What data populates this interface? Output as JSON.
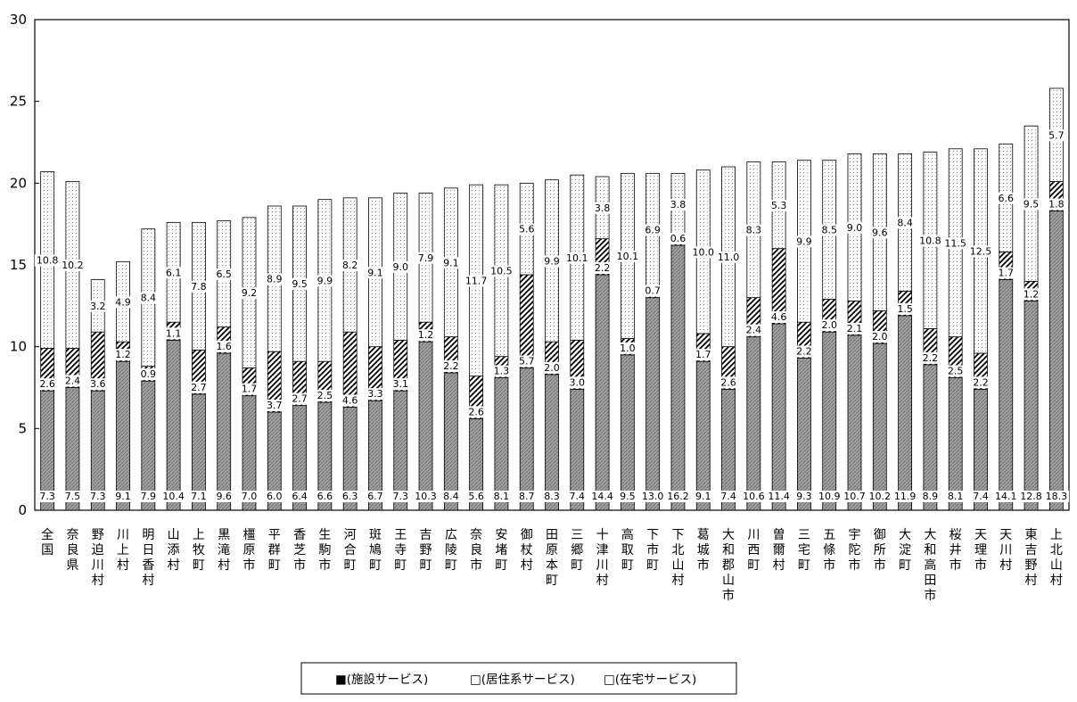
{
  "chart_data": {
    "type": "bar",
    "stacked": true,
    "ylim": [
      0,
      30
    ],
    "yticks": [
      0,
      5,
      10,
      15,
      20,
      25,
      30
    ],
    "grid": false,
    "legend_position": "bottom",
    "categories": [
      "全国",
      "奈良県",
      "野迫川村",
      "川上村",
      "明日香村",
      "山添村",
      "上牧町",
      "黒滝村",
      "橿原市",
      "平群町",
      "香芝市",
      "生駒市",
      "河合町",
      "斑鳩町",
      "王寺町",
      "吉野町",
      "広陵町",
      "奈良市",
      "安堵町",
      "御杖村",
      "田原本町",
      "三郷町",
      "十津川村",
      "高取町",
      "下市町",
      "下北山村",
      "葛城市",
      "大和郡山市",
      "川西町",
      "曽爾村",
      "三宅町",
      "五條市",
      "宇陀市",
      "御所市",
      "大淀町",
      "大和高田市",
      "桜井市",
      "天理市",
      "天川村",
      "東吉野村",
      "上北山村"
    ],
    "series": [
      {
        "name": "施設サービス",
        "color": "#8c8c8c",
        "values": [
          7.3,
          7.5,
          7.3,
          9.1,
          7.9,
          10.4,
          7.1,
          9.6,
          7.0,
          6.0,
          6.4,
          6.6,
          6.3,
          6.7,
          7.3,
          10.3,
          8.4,
          5.6,
          8.1,
          8.7,
          8.3,
          7.4,
          14.4,
          9.5,
          13.0,
          16.2,
          9.1,
          7.4,
          10.6,
          11.4,
          9.3,
          10.9,
          10.7,
          10.2,
          11.9,
          8.9,
          8.1,
          7.4,
          14.1,
          12.8,
          18.3
        ]
      },
      {
        "name": "居住系サービス",
        "color": "#ffffff",
        "values": [
          2.6,
          2.4,
          3.6,
          1.2,
          0.9,
          1.1,
          2.7,
          1.6,
          1.7,
          3.7,
          2.7,
          2.5,
          4.6,
          3.3,
          3.1,
          1.2,
          2.2,
          2.6,
          1.3,
          5.7,
          2.0,
          3.0,
          2.2,
          1.0,
          0.7,
          0.6,
          1.7,
          2.6,
          2.4,
          4.6,
          2.2,
          2.0,
          2.1,
          2.0,
          1.5,
          2.2,
          2.5,
          2.2,
          1.7,
          1.2,
          1.8
        ]
      },
      {
        "name": "在宅サービス",
        "color": "#ffffff",
        "values": [
          10.8,
          10.2,
          3.2,
          4.9,
          8.4,
          6.1,
          7.8,
          6.5,
          9.2,
          8.9,
          9.5,
          9.9,
          8.2,
          9.1,
          9.0,
          7.9,
          9.1,
          11.7,
          10.5,
          5.6,
          9.9,
          10.1,
          3.8,
          10.1,
          6.9,
          3.8,
          10.0,
          11.0,
          8.3,
          5.3,
          9.9,
          8.5,
          9.0,
          9.6,
          8.4,
          10.8,
          11.5,
          12.5,
          6.6,
          9.5,
          5.7
        ]
      }
    ],
    "legend": [
      "■(施設サービス)",
      "□(居住系サービス)",
      "□(在宅サービス)"
    ]
  }
}
